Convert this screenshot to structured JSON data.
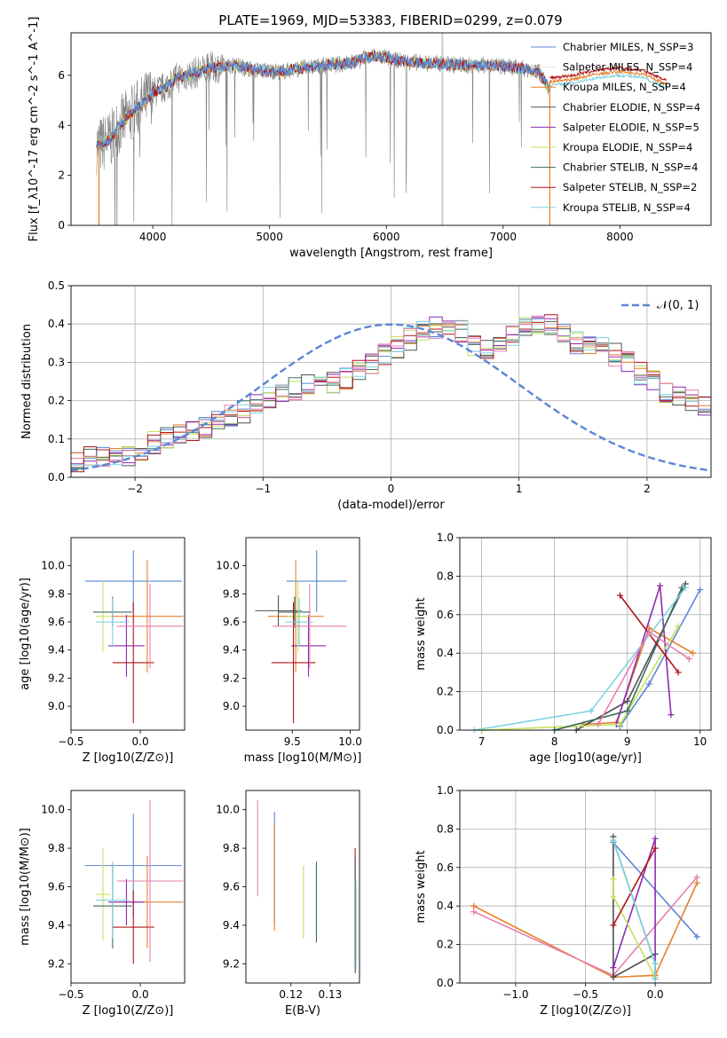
{
  "title": "PLATE=1969, MJD=53383, FIBERID=0299, z=0.079",
  "colors": {
    "chabrier_miles": "#5b86d6",
    "salpeter_miles": "#e8e6e6",
    "kroupa_miles": "#e6802c",
    "chabrier_elodie": "#515151",
    "salpeter_elodie": "#8f2ab0",
    "kroupa_elodie": "#c3e35a",
    "chabrier_stelib": "#3f6b5e",
    "salpeter_stelib": "#b0141a",
    "kroupa_stelib": "#7ed3e0",
    "pink": "#e67fb0",
    "data": "#808080",
    "gauss": "#5b86d6"
  },
  "chart_data": [
    {
      "id": "spectrum",
      "type": "line",
      "xlabel": "wavelength [Angstrom, rest frame]",
      "ylabel": "Flux [f_λ10^-17 erg cm^-2 s^-1 A^-1]",
      "xlim": [
        3300,
        8780
      ],
      "ylim": [
        0,
        7.7
      ],
      "xticks": [
        "4000",
        "5000",
        "6000",
        "7000",
        "8000"
      ],
      "yticks": [
        "0",
        "2",
        "4",
        "6"
      ],
      "legend_position": "right",
      "legend": [
        "Chabrier MILES, N_SSP=3",
        "Salpeter MILES, N_SSP=4",
        "Kroupa MILES, N_SSP=4",
        "Chabrier ELODIE, N_SSP=4",
        "Salpeter ELODIE, N_SSP=5",
        "Kroupa ELODIE, N_SSP=4",
        "Chabrier STELIB, N_SSP=4",
        "Salpeter STELIB, N_SSP=2",
        "Kroupa STELIB, N_SSP=4"
      ],
      "continuum": {
        "x": [
          3550,
          3650,
          3700,
          3800,
          3900,
          4000,
          4100,
          4200,
          4300,
          4500,
          4700,
          4900,
          5100,
          5300,
          5500,
          5700,
          5900,
          6100,
          6300,
          6500,
          6700,
          6900,
          7100,
          7300,
          7400
        ],
        "y": [
          3.2,
          3.5,
          3.9,
          4.4,
          4.8,
          5.3,
          5.5,
          5.9,
          6.0,
          6.3,
          6.4,
          6.2,
          6.15,
          6.3,
          6.4,
          6.5,
          6.8,
          6.6,
          6.5,
          6.45,
          6.4,
          6.4,
          6.3,
          6.2,
          5.4
        ]
      },
      "model_extension": {
        "x": [
          7400,
          7600,
          7800,
          8000,
          8200,
          8400
        ],
        "y": [
          5.9,
          6.0,
          6.2,
          6.3,
          6.2,
          5.8
        ]
      }
    },
    {
      "id": "residual_histogram",
      "type": "bar",
      "xlabel": "(data-model)/error",
      "ylabel": "Normed distribution",
      "xlim": [
        -2.5,
        2.5
      ],
      "ylim": [
        0,
        0.5
      ],
      "xticks": [
        "−2",
        "−1",
        "0",
        "1",
        "2"
      ],
      "yticks": [
        "0.0",
        "0.1",
        "0.2",
        "0.3",
        "0.4",
        "0.5"
      ],
      "grid": true,
      "legend": [
        "𝒩(0, 1)"
      ],
      "legend_position": "top-right",
      "bin_width": 0.1,
      "bin_start": -2.5,
      "heights": [
        0.04,
        0.05,
        0.05,
        0.06,
        0.06,
        0.07,
        0.09,
        0.1,
        0.11,
        0.12,
        0.13,
        0.15,
        0.16,
        0.17,
        0.19,
        0.21,
        0.22,
        0.23,
        0.24,
        0.24,
        0.25,
        0.26,
        0.28,
        0.3,
        0.32,
        0.34,
        0.36,
        0.38,
        0.39,
        0.4,
        0.38,
        0.34,
        0.33,
        0.34,
        0.37,
        0.39,
        0.4,
        0.4,
        0.38,
        0.35,
        0.34,
        0.34,
        0.32,
        0.3,
        0.27,
        0.25,
        0.22,
        0.21,
        0.2,
        0.18
      ]
    },
    {
      "id": "age_vs_Z",
      "type": "scatter",
      "xlabel": "Z [log10(Z/Z⊙)]",
      "ylabel": "age [log10(age/yr)]",
      "xlim": [
        -0.5,
        0.32
      ],
      "ylim": [
        8.83,
        10.2
      ],
      "xticks": [
        "−0.5",
        "0.0"
      ],
      "yticks": [
        "9.0",
        "9.2",
        "9.4",
        "9.6",
        "9.8",
        "10.0"
      ],
      "points": [
        {
          "color": "chabrier_miles",
          "x": -0.05,
          "y": 9.89,
          "xerr": 0.35,
          "yerr": 0.22
        },
        {
          "color": "kroupa_miles",
          "x": 0.05,
          "y": 9.64,
          "xerr": 0.26,
          "yerr": 0.4
        },
        {
          "color": "salpeter_elodie",
          "x": -0.1,
          "y": 9.43,
          "xerr": 0.13,
          "yerr": 0.22
        },
        {
          "color": "kroupa_elodie",
          "x": -0.27,
          "y": 9.64,
          "xerr": 0.05,
          "yerr": 0.25
        },
        {
          "color": "chabrier_stelib",
          "x": -0.2,
          "y": 9.67,
          "xerr": 0.14,
          "yerr": 0.11
        },
        {
          "color": "salpeter_stelib",
          "x": -0.05,
          "y": 9.31,
          "xerr": 0.15,
          "yerr": 0.43
        },
        {
          "color": "kroupa_stelib",
          "x": -0.2,
          "y": 9.6,
          "xerr": 0.12,
          "yerr": 0.17
        },
        {
          "color": "pink",
          "x": 0.07,
          "y": 9.57,
          "xerr": 0.24,
          "yerr": 0.3
        }
      ]
    },
    {
      "id": "age_vs_mass",
      "type": "scatter",
      "xlabel": "mass [log10(M/M⊙)]",
      "ylabel": "",
      "xlim": [
        9.1,
        10.08
      ],
      "ylim": [
        8.83,
        10.2
      ],
      "xticks": [
        "9.5",
        "10.0"
      ],
      "yticks": [
        "9.0",
        "9.2",
        "9.4",
        "9.6",
        "9.8",
        "10.0"
      ],
      "points": [
        {
          "color": "chabrier_miles",
          "x": 9.71,
          "y": 9.89,
          "xerr": 0.26,
          "yerr": 0.22
        },
        {
          "color": "kroupa_miles",
          "x": 9.53,
          "y": 9.64,
          "xerr": 0.24,
          "yerr": 0.4
        },
        {
          "color": "salpeter_elodie",
          "x": 9.64,
          "y": 9.43,
          "xerr": 0.15,
          "yerr": 0.22
        },
        {
          "color": "chabrier_elodie",
          "x": 9.38,
          "y": 9.68,
          "xerr": 0.2,
          "yerr": 0.11
        },
        {
          "color": "kroupa_elodie",
          "x": 9.55,
          "y": 9.64,
          "xerr": 0.1,
          "yerr": 0.25
        },
        {
          "color": "chabrier_stelib",
          "x": 9.52,
          "y": 9.67,
          "xerr": 0.14,
          "yerr": 0.11
        },
        {
          "color": "salpeter_stelib",
          "x": 9.51,
          "y": 9.31,
          "xerr": 0.19,
          "yerr": 0.43
        },
        {
          "color": "kroupa_stelib",
          "x": 9.56,
          "y": 9.6,
          "xerr": 0.12,
          "yerr": 0.17
        },
        {
          "color": "pink",
          "x": 9.65,
          "y": 9.57,
          "xerr": 0.32,
          "yerr": 0.3
        }
      ]
    },
    {
      "id": "massweight_vs_age",
      "type": "line",
      "xlabel": "age [log10(age/yr)]",
      "ylabel": "mass weight",
      "xlim": [
        6.7,
        10.15
      ],
      "ylim": [
        0,
        1
      ],
      "xticks": [
        "7",
        "8",
        "9",
        "10"
      ],
      "yticks": [
        "0.0",
        "0.2",
        "0.4",
        "0.6",
        "0.8",
        "1.0"
      ],
      "grid": true,
      "series": [
        {
          "color": "chabrier_miles",
          "x": [
            8.9,
            9.3,
            10.0
          ],
          "y": [
            0.02,
            0.24,
            0.73
          ]
        },
        {
          "color": "kroupa_miles",
          "x": [
            8.4,
            8.85,
            9.3,
            9.9
          ],
          "y": [
            0.03,
            0.04,
            0.53,
            0.4
          ]
        },
        {
          "color": "chabrier_elodie",
          "x": [
            8.3,
            9.0,
            9.8
          ],
          "y": [
            0.0,
            0.15,
            0.76
          ]
        },
        {
          "color": "salpeter_elodie",
          "x": [
            8.85,
            9.45,
            9.6
          ],
          "y": [
            0.03,
            0.75,
            0.08
          ]
        },
        {
          "color": "kroupa_elodie",
          "x": [
            7.0,
            8.9,
            9.7
          ],
          "y": [
            0.0,
            0.03,
            0.54
          ]
        },
        {
          "color": "chabrier_stelib",
          "x": [
            8.0,
            9.0,
            9.75
          ],
          "y": [
            0.0,
            0.1,
            0.74
          ]
        },
        {
          "color": "salpeter_stelib",
          "x": [
            8.9,
            9.7
          ],
          "y": [
            0.7,
            0.3
          ]
        },
        {
          "color": "kroupa_stelib",
          "x": [
            6.9,
            8.5,
            9.8
          ],
          "y": [
            0.0,
            0.1,
            0.74
          ]
        },
        {
          "color": "pink",
          "x": [
            8.6,
            9.3,
            9.85
          ],
          "y": [
            0.03,
            0.51,
            0.37
          ]
        }
      ]
    },
    {
      "id": "mass_vs_Z",
      "type": "scatter",
      "xlabel": "Z [log10(Z/Z⊙)]",
      "ylabel": "mass [log10(M/M⊙)]",
      "xlim": [
        -0.5,
        0.32
      ],
      "ylim": [
        9.1,
        10.1
      ],
      "xticks": [
        "−0.5",
        "0.0"
      ],
      "yticks": [
        "9.2",
        "9.4",
        "9.6",
        "9.8",
        "10.0"
      ],
      "points": [
        {
          "color": "chabrier_miles",
          "x": -0.05,
          "y": 9.71,
          "xerr": 0.35,
          "yerr": 0.27
        },
        {
          "color": "kroupa_miles",
          "x": 0.05,
          "y": 9.52,
          "xerr": 0.26,
          "yerr": 0.24
        },
        {
          "color": "salpeter_elodie",
          "x": -0.1,
          "y": 9.52,
          "xerr": 0.13,
          "yerr": 0.12
        },
        {
          "color": "kroupa_elodie",
          "x": -0.27,
          "y": 9.56,
          "xerr": 0.05,
          "yerr": 0.24
        },
        {
          "color": "chabrier_stelib",
          "x": -0.2,
          "y": 9.5,
          "xerr": 0.14,
          "yerr": 0.22
        },
        {
          "color": "salpeter_stelib",
          "x": -0.05,
          "y": 9.39,
          "xerr": 0.15,
          "yerr": 0.19
        },
        {
          "color": "kroupa_stelib",
          "x": -0.2,
          "y": 9.53,
          "xerr": 0.12,
          "yerr": 0.2
        },
        {
          "color": "pink",
          "x": 0.07,
          "y": 9.63,
          "xerr": 0.24,
          "yerr": 0.42
        }
      ]
    },
    {
      "id": "mass_vs_ebv",
      "type": "scatter",
      "xlabel": "E(B-V)",
      "ylabel": "",
      "xlim": [
        0.1085,
        0.1375
      ],
      "ylim": [
        9.1,
        10.1
      ],
      "xticks": [
        "0.12",
        "0.13"
      ],
      "yticks": [
        "9.2",
        "9.4",
        "9.6",
        "9.8",
        "10.0"
      ],
      "points": [
        {
          "color": "pink",
          "x": 0.1115,
          "y": 9.8,
          "yerr": 0.25
        },
        {
          "color": "chabrier_miles",
          "x": 0.1158,
          "y": 9.7,
          "yerr": 0.29
        },
        {
          "color": "kroupa_miles",
          "x": 0.1158,
          "y": 9.65,
          "yerr": 0.28
        },
        {
          "color": "kroupa_elodie",
          "x": 0.1232,
          "y": 9.52,
          "yerr": 0.19
        },
        {
          "color": "chabrier_stelib",
          "x": 0.1265,
          "y": 9.52,
          "yerr": 0.21
        },
        {
          "color": "salpeter_stelib",
          "x": 0.1364,
          "y": 9.5,
          "yerr": 0.3
        },
        {
          "color": "chabrier_elodie",
          "x": 0.1364,
          "y": 9.45,
          "yerr": 0.3
        },
        {
          "color": "kroupa_stelib",
          "x": 0.1366,
          "y": 9.4,
          "yerr": 0.23
        }
      ]
    },
    {
      "id": "massweight_vs_Z",
      "type": "line",
      "xlabel": "Z [log10(Z/Z⊙)]",
      "ylabel": "mass weight",
      "xlim": [
        -1.4,
        0.4
      ],
      "ylim": [
        0,
        1
      ],
      "xticks": [
        "−1.0",
        "−0.5",
        "0.0"
      ],
      "yticks": [
        "0.0",
        "0.2",
        "0.4",
        "0.6",
        "0.8",
        "1.0"
      ],
      "grid": true,
      "series": [
        {
          "color": "chabrier_miles",
          "x": [
            -0.3,
            0.3
          ],
          "y": [
            0.73,
            0.24
          ]
        },
        {
          "color": "kroupa_miles",
          "x": [
            -1.3,
            -0.3,
            0.0,
            0.3
          ],
          "y": [
            0.4,
            0.03,
            0.04,
            0.52
          ]
        },
        {
          "color": "pink",
          "x": [
            -1.3,
            -0.3,
            0.3
          ],
          "y": [
            0.37,
            0.04,
            0.55
          ]
        },
        {
          "color": "chabrier_elodie",
          "x": [
            -0.3,
            -0.3,
            0.0
          ],
          "y": [
            0.76,
            0.03,
            0.15
          ]
        },
        {
          "color": "salpeter_elodie",
          "x": [
            -0.3,
            0.0,
            0.0
          ],
          "y": [
            0.08,
            0.75,
            0.03
          ]
        },
        {
          "color": "kroupa_elodie",
          "x": [
            -0.3,
            -0.3,
            0.0
          ],
          "y": [
            0.54,
            0.45,
            0.03
          ]
        },
        {
          "color": "chabrier_stelib",
          "x": [
            -0.3,
            0.0,
            0.0
          ],
          "y": [
            0.74,
            0.1,
            0.02
          ]
        },
        {
          "color": "salpeter_stelib",
          "x": [
            -0.3,
            0.0
          ],
          "y": [
            0.3,
            0.7
          ]
        },
        {
          "color": "kroupa_stelib",
          "x": [
            -0.3,
            0.0,
            0.0
          ],
          "y": [
            0.74,
            0.1,
            0.02
          ]
        }
      ]
    }
  ]
}
